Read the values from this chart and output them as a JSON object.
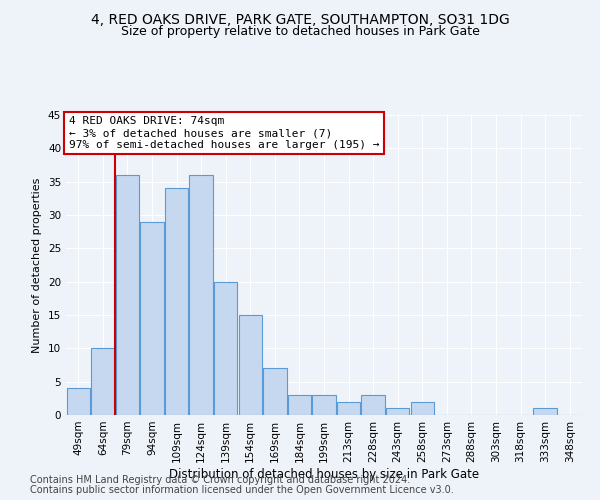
{
  "title1": "4, RED OAKS DRIVE, PARK GATE, SOUTHAMPTON, SO31 1DG",
  "title2": "Size of property relative to detached houses in Park Gate",
  "xlabel": "Distribution of detached houses by size in Park Gate",
  "ylabel": "Number of detached properties",
  "categories": [
    "49sqm",
    "64sqm",
    "79sqm",
    "94sqm",
    "109sqm",
    "124sqm",
    "139sqm",
    "154sqm",
    "169sqm",
    "184sqm",
    "199sqm",
    "213sqm",
    "228sqm",
    "243sqm",
    "258sqm",
    "273sqm",
    "288sqm",
    "303sqm",
    "318sqm",
    "333sqm",
    "348sqm"
  ],
  "values": [
    4,
    10,
    36,
    29,
    34,
    36,
    20,
    15,
    7,
    3,
    3,
    2,
    3,
    1,
    2,
    0,
    0,
    0,
    0,
    1,
    0
  ],
  "bar_color": "#c5d8f0",
  "bar_edge_color": "#5b9bd5",
  "vline_x": 1.5,
  "annotation_text": "4 RED OAKS DRIVE: 74sqm\n← 3% of detached houses are smaller (7)\n97% of semi-detached houses are larger (195) →",
  "annotation_box_color": "#ffffff",
  "annotation_box_edge_color": "#cc0000",
  "vline_color": "#cc0000",
  "footer1": "Contains HM Land Registry data © Crown copyright and database right 2024.",
  "footer2": "Contains public sector information licensed under the Open Government Licence v3.0.",
  "ylim": [
    0,
    45
  ],
  "yticks": [
    0,
    5,
    10,
    15,
    20,
    25,
    30,
    35,
    40,
    45
  ],
  "background_color": "#eef2f9",
  "grid_color": "#ffffff",
  "title1_fontsize": 10,
  "title2_fontsize": 9,
  "xlabel_fontsize": 8.5,
  "ylabel_fontsize": 8,
  "tick_fontsize": 7.5,
  "annotation_fontsize": 8,
  "footer_fontsize": 7
}
